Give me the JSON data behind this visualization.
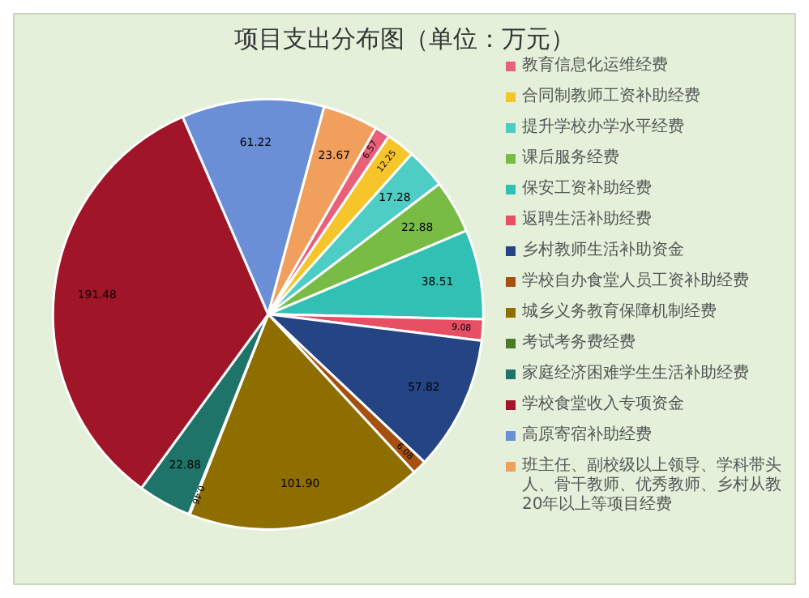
{
  "chart_data": {
    "type": "pie",
    "title": "项目支出分布图（单位：万元）",
    "categories": [
      "教育信息化运维经费",
      "合同制教师工资补助经费",
      "提升学校办学水平经费",
      "课后服务经费",
      "保安工资补助经费",
      "返聘生活补助经费",
      "乡村教师生活补助资金",
      "学校自办食堂人员工资补助经费",
      "城乡义务教育保障机制经费",
      "考试考务费经费",
      "家庭经济困难学生生活补助经费",
      "学校食堂收入专项资金",
      "高原寄宿补助经费",
      "班主任、副校级以上领导、学科带头人、骨干教师、优秀教师、乡村从教20年以上等项目经费"
    ],
    "values": [
      6.57,
      12.25,
      17.28,
      22.88,
      38.51,
      9.08,
      57.82,
      6.08,
      101.9,
      0.46,
      22.88,
      191.48,
      61.22,
      23.67
    ],
    "value_labels": [
      "6.57",
      "12.25",
      "17.28",
      "22.88",
      "38.51",
      "9.08",
      "57.82",
      "6.08",
      "101.90",
      "0.46",
      "22.88",
      "191.48",
      "61.22",
      "23.67"
    ],
    "colors": [
      "#e8607a",
      "#f5c52a",
      "#4ecdc4",
      "#78bc45",
      "#30c1b4",
      "#e64f64",
      "#254483",
      "#a5500f",
      "#8f6e00",
      "#4a7a2a",
      "#1f7469",
      "#a01628",
      "#6b8fd6",
      "#f0a05c"
    ],
    "legend": "right"
  }
}
